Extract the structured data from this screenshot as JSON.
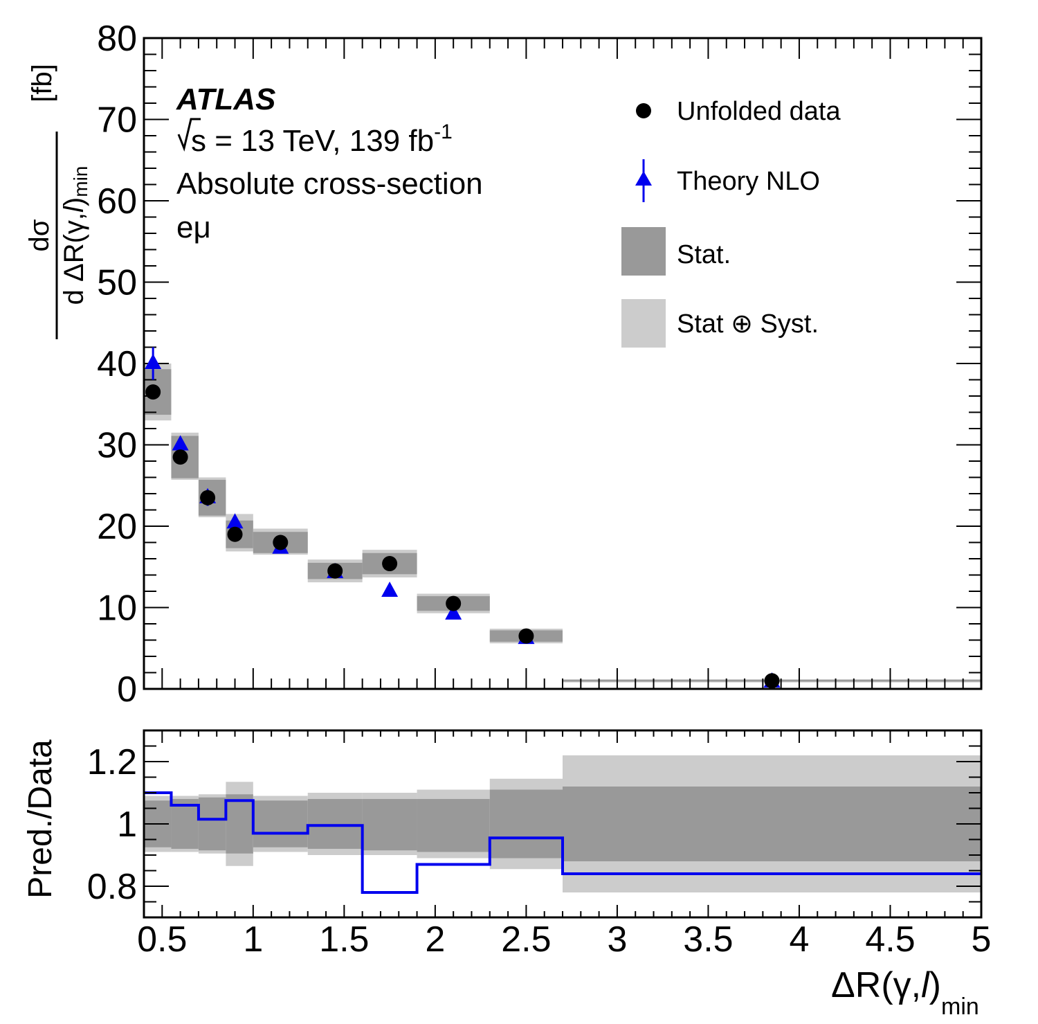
{
  "experiment": "ATLAS",
  "energy_prefix": "s = 13 TeV, 139 fb",
  "energy_sup": "-1",
  "description": "Absolute cross-section",
  "channel": "eμ",
  "top_ylabel": {
    "numer": "dσ",
    "denom_main": "d ΔR(γ,",
    "denom_l": "l",
    "denom_close": ")",
    "denom_sub": "min",
    "unit": "[fb]"
  },
  "bottom_ylabel": "Pred./Data",
  "xlabel": {
    "main": "ΔR(γ,",
    "l": "l",
    "close": ")",
    "sub": "min"
  },
  "x_ticks": [
    "0.5",
    "1",
    "1.5",
    "2",
    "2.5",
    "3",
    "3.5",
    "4",
    "4.5",
    "5"
  ],
  "y_ticks_top": [
    "0",
    "10",
    "20",
    "30",
    "40",
    "50",
    "60",
    "70",
    "80"
  ],
  "y_ticks_bottom": [
    "0.8",
    "1",
    "1.2"
  ],
  "legend": {
    "data": "Unfolded data",
    "theory": "Theory NLO",
    "stat": "Stat.",
    "statsyst": "Stat ⊕ Syst."
  },
  "colors": {
    "data": "#000000",
    "theory": "#0000ee",
    "stat": "#999999",
    "statsyst": "#cccccc"
  },
  "chart_data": [
    {
      "type": "scatter",
      "panel": "cross-section",
      "xlim": [
        0.4,
        5.0
      ],
      "ylim": [
        0,
        80
      ],
      "bins": [
        [
          0.4,
          0.55
        ],
        [
          0.55,
          0.7
        ],
        [
          0.7,
          0.85
        ],
        [
          0.85,
          1.0
        ],
        [
          1.0,
          1.3
        ],
        [
          1.3,
          1.6
        ],
        [
          1.6,
          1.9
        ],
        [
          1.9,
          2.3
        ],
        [
          2.3,
          2.7
        ],
        [
          2.7,
          5.0
        ]
      ],
      "series": [
        {
          "name": "Unfolded data",
          "x": [
            0.45,
            0.6,
            0.75,
            0.9,
            1.15,
            1.45,
            1.75,
            2.1,
            2.5,
            3.85
          ],
          "y": [
            36.5,
            28.5,
            23.5,
            19.0,
            18.0,
            14.5,
            15.4,
            10.5,
            6.5,
            1.0
          ]
        },
        {
          "name": "Theory NLO",
          "x": [
            0.45,
            0.6,
            0.75,
            0.9,
            1.15,
            1.45,
            1.75,
            2.1,
            2.5,
            3.85
          ],
          "y": [
            40.0,
            30.0,
            23.5,
            20.4,
            17.3,
            14.3,
            12.0,
            9.2,
            6.2,
            0.85
          ],
          "err": [
            2.0,
            0.6,
            1.0,
            0.5,
            0.5,
            0.4,
            0.3,
            0.4,
            0.3,
            0.1
          ]
        }
      ],
      "stat_band": {
        "low": [
          33.7,
          25.9,
          21.3,
          17.3,
          16.7,
          13.5,
          14.1,
          9.6,
          5.8,
          0.9
        ],
        "high": [
          39.3,
          31.1,
          25.7,
          20.7,
          19.3,
          15.5,
          16.7,
          11.4,
          7.2,
          1.1
        ]
      },
      "statsyst_band": {
        "low": [
          33.0,
          25.7,
          21.1,
          16.9,
          16.5,
          13.1,
          13.7,
          9.3,
          5.6,
          0.8
        ],
        "high": [
          40.0,
          31.5,
          26.0,
          21.5,
          19.7,
          15.9,
          17.1,
          11.7,
          7.4,
          1.2
        ]
      }
    },
    {
      "type": "line",
      "panel": "ratio",
      "xlim": [
        0.4,
        5.0
      ],
      "ylim": [
        0.7,
        1.3
      ],
      "bins": [
        [
          0.4,
          0.55
        ],
        [
          0.55,
          0.7
        ],
        [
          0.7,
          0.85
        ],
        [
          0.85,
          1.0
        ],
        [
          1.0,
          1.3
        ],
        [
          1.3,
          1.6
        ],
        [
          1.6,
          1.9
        ],
        [
          1.9,
          2.3
        ],
        [
          2.3,
          2.7
        ],
        [
          2.7,
          5.0
        ]
      ],
      "series": [
        {
          "name": "Theory NLO",
          "values": [
            1.1,
            1.06,
            1.015,
            1.075,
            0.97,
            0.995,
            0.78,
            0.87,
            0.955,
            0.84
          ]
        }
      ],
      "stat_band": {
        "low": [
          0.925,
          0.92,
          0.915,
          0.905,
          0.925,
          0.92,
          0.915,
          0.91,
          0.89,
          0.88
        ],
        "high": [
          1.075,
          1.08,
          1.085,
          1.095,
          1.075,
          1.08,
          1.08,
          1.08,
          1.11,
          1.12
        ]
      },
      "statsyst_band": {
        "low": [
          0.91,
          0.91,
          0.905,
          0.865,
          0.91,
          0.9,
          0.9,
          0.89,
          0.855,
          0.78
        ]
      },
      "statsyst_band_high": [
        1.09,
        1.09,
        1.095,
        1.135,
        1.09,
        1.1,
        1.1,
        1.11,
        1.145,
        1.22
      ]
    }
  ]
}
